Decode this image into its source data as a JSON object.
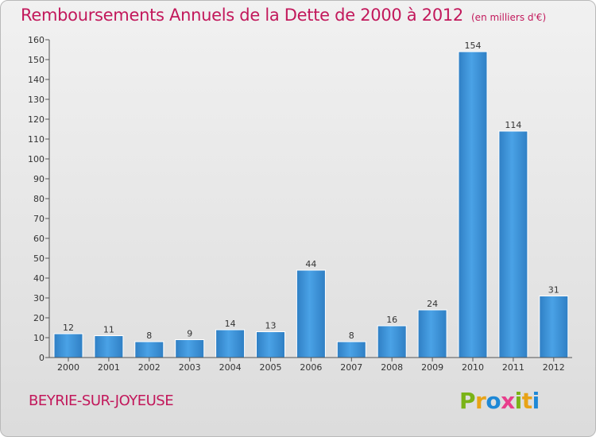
{
  "chart_data": {
    "type": "bar",
    "title": "Remboursements Annuels de la Dette de 2000 à 2012",
    "unit": "(en milliers d'€)",
    "categories": [
      "2000",
      "2001",
      "2002",
      "2003",
      "2004",
      "2005",
      "2006",
      "2007",
      "2008",
      "2009",
      "2010",
      "2011",
      "2012"
    ],
    "values": [
      12,
      11,
      8,
      9,
      14,
      13,
      44,
      8,
      16,
      24,
      154,
      114,
      31
    ],
    "ylim": [
      0,
      160
    ],
    "yticks": [
      0,
      10,
      20,
      30,
      40,
      50,
      60,
      70,
      80,
      90,
      100,
      110,
      120,
      130,
      140,
      150,
      160
    ],
    "grid": false,
    "bar_color": "#3d8fd4"
  },
  "footer": {
    "commune": "BEYRIE-SUR-JOYEUSE",
    "logo_text": "Proxiti",
    "logo_colors": [
      "#7ab317",
      "#e8a317",
      "#1e88d6",
      "#e83e8c",
      "#7ab317",
      "#e8a317",
      "#1e88d6"
    ]
  },
  "colors": {
    "title": "#c2185b",
    "axis": "#555555"
  }
}
